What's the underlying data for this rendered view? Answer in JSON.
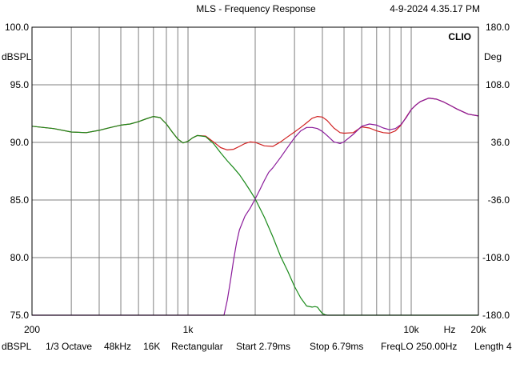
{
  "header": {
    "title": "MLS - Frequency Response",
    "timestamp": "4-9-2024 4.35.17 PM",
    "brand": "CLIO"
  },
  "axis_units": {
    "left": "dBSPL",
    "right": "Deg",
    "x": "Hz"
  },
  "status_bar": {
    "items": [
      "dBSPL",
      "1/3 Octave",
      "48kHz",
      "16K",
      "Rectangular",
      "Start 2.79ms",
      "Stop 6.79ms",
      "FreqLO 250.00Hz",
      "Length 4"
    ]
  },
  "chart_data": {
    "type": "line",
    "title": "MLS - Frequency Response",
    "xlabel": "Hz",
    "ylabel": "dBSPL",
    "y2label": "Deg",
    "x_scale": "log",
    "xlim": [
      200,
      20000
    ],
    "ylim": [
      75,
      100
    ],
    "y2lim": [
      -180,
      180
    ],
    "x_ticks": [
      {
        "value": 200,
        "label": "200"
      },
      {
        "value": 1000,
        "label": "1k"
      },
      {
        "value": 10000,
        "label": "10k"
      },
      {
        "value": 20000,
        "label": "20k"
      }
    ],
    "y_ticks": [
      {
        "value": 75,
        "label": "75.0"
      },
      {
        "value": 80,
        "label": "80.0"
      },
      {
        "value": 85,
        "label": "85.0"
      },
      {
        "value": 90,
        "label": "90.0"
      },
      {
        "value": 95,
        "label": "95.0"
      },
      {
        "value": 100,
        "label": "100.0"
      }
    ],
    "y2_ticks": [
      {
        "value": -180,
        "label": "-180.0"
      },
      {
        "value": -108,
        "label": "-108.0"
      },
      {
        "value": -36,
        "label": "-36.0"
      },
      {
        "value": 36,
        "label": "36.0"
      },
      {
        "value": 108,
        "label": "108.0"
      },
      {
        "value": 180,
        "label": "180.0"
      }
    ],
    "grid": true,
    "colors": {
      "red": "#d02020",
      "green": "#1a8a1a",
      "purple": "#8a1a9a",
      "grid": "#808080",
      "frame": "#000000"
    },
    "series": [
      {
        "color": "red",
        "x": [
          200,
          250,
          300,
          350,
          400,
          450,
          500,
          550,
          600,
          650,
          700,
          750,
          800,
          850,
          900,
          950,
          1000,
          1050,
          1100,
          1200,
          1300,
          1400,
          1500,
          1600,
          1700,
          1800,
          1900,
          2000,
          2100,
          2200,
          2400,
          2600,
          2800,
          3000,
          3200,
          3400,
          3600,
          3800,
          4000,
          4200,
          4500,
          4800,
          5000,
          5500,
          6000,
          6500,
          7000,
          7500,
          8000,
          8500,
          9000,
          9500,
          10000,
          10500,
          11000,
          12000,
          13000,
          14000,
          15000,
          16000,
          18000,
          20000
        ],
        "y": [
          91.4,
          91.2,
          90.9,
          90.85,
          91.05,
          91.3,
          91.5,
          91.6,
          91.8,
          92.05,
          92.25,
          92.15,
          91.6,
          90.9,
          90.3,
          89.95,
          90.1,
          90.4,
          90.6,
          90.55,
          90.05,
          89.55,
          89.35,
          89.4,
          89.65,
          89.9,
          90.05,
          90.0,
          89.85,
          89.7,
          89.65,
          90.05,
          90.5,
          90.9,
          91.3,
          91.7,
          92.1,
          92.25,
          92.2,
          91.9,
          91.25,
          90.85,
          90.8,
          90.85,
          91.35,
          91.25,
          91.0,
          90.85,
          90.8,
          91.0,
          91.5,
          92.2,
          92.85,
          93.25,
          93.55,
          93.85,
          93.75,
          93.5,
          93.2,
          92.9,
          92.45,
          92.3
        ]
      },
      {
        "color": "green",
        "x": [
          200,
          250,
          300,
          350,
          400,
          450,
          500,
          550,
          600,
          650,
          700,
          750,
          800,
          850,
          900,
          950,
          1000,
          1050,
          1100,
          1200,
          1300,
          1400,
          1500,
          1600,
          1700,
          1800,
          1900,
          2000,
          2200,
          2400,
          2600,
          2800,
          3000,
          3200,
          3400,
          3600,
          3700,
          3800,
          3900,
          4000,
          4100,
          4200,
          4400,
          20000
        ],
        "y": [
          91.4,
          91.2,
          90.9,
          90.85,
          91.05,
          91.3,
          91.5,
          91.6,
          91.8,
          92.05,
          92.25,
          92.15,
          91.6,
          90.9,
          90.3,
          89.95,
          90.1,
          90.4,
          90.6,
          90.5,
          89.9,
          89.1,
          88.4,
          87.8,
          87.2,
          86.5,
          85.8,
          85.1,
          83.5,
          81.8,
          80.1,
          78.8,
          77.5,
          76.5,
          75.8,
          75.7,
          75.75,
          75.7,
          75.4,
          75.15,
          75.05,
          75.0,
          75.0,
          75.0
        ]
      },
      {
        "color": "purple",
        "x": [
          200,
          1450,
          1500,
          1550,
          1600,
          1650,
          1700,
          1800,
          1900,
          2000,
          2100,
          2200,
          2300,
          2400,
          2600,
          2800,
          3000,
          3200,
          3400,
          3600,
          3800,
          4000,
          4200,
          4500,
          4800,
          5000,
          5500,
          6000,
          6500,
          7000,
          7500,
          8000,
          8500,
          9000,
          9500,
          10000,
          10500,
          11000,
          12000,
          13000,
          14000,
          15000,
          16000,
          18000,
          20000
        ],
        "y": [
          75.0,
          75.0,
          76.3,
          78.0,
          79.8,
          81.3,
          82.4,
          83.6,
          84.3,
          85.1,
          85.9,
          86.7,
          87.4,
          87.8,
          88.7,
          89.6,
          90.4,
          91.0,
          91.3,
          91.3,
          91.2,
          90.95,
          90.6,
          90.05,
          89.9,
          90.05,
          90.7,
          91.4,
          91.6,
          91.5,
          91.25,
          91.1,
          91.2,
          91.55,
          92.15,
          92.85,
          93.25,
          93.55,
          93.85,
          93.75,
          93.5,
          93.2,
          92.9,
          92.45,
          92.3
        ]
      }
    ]
  }
}
